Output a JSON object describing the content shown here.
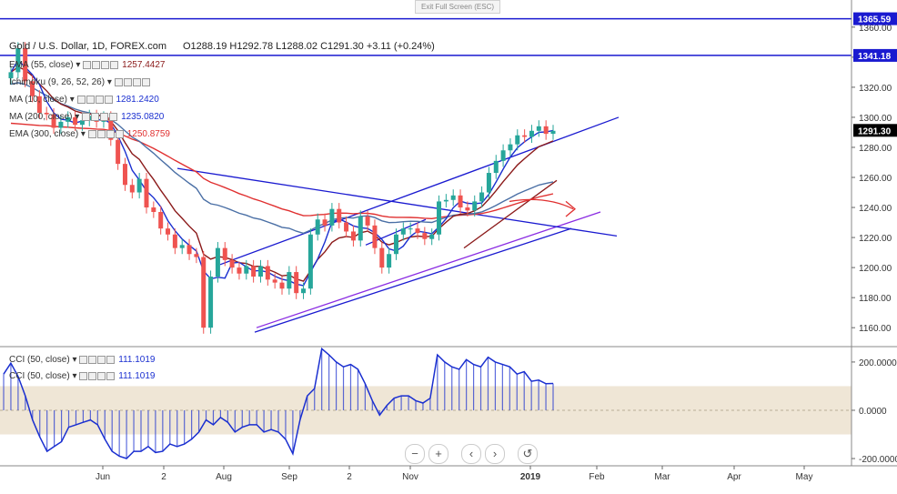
{
  "window": {
    "exit_fullscreen_label": "Exit Full Screen (ESC)"
  },
  "legend": {
    "symbol": "Gold / U.S. Dollar, 1D, FOREX.com",
    "ohlc": "O1288.19  H1292.78  L1288.02  C1291.30  +3.11 (+0.24%)",
    "indicators": [
      {
        "name": "EMA (55, close)",
        "value": "1257.4427",
        "color": "#8b1a1a"
      },
      {
        "name": "Ichimoku (9, 26, 52, 26)",
        "value": "",
        "color": "#1e6fd9"
      },
      {
        "name": "MA (10, close)",
        "value": "1281.2420",
        "color": "#1a2fd0"
      },
      {
        "name": "MA (200, close)",
        "value": "1235.0820",
        "color": "#1a2fd0"
      },
      {
        "name": "EMA (300, close)",
        "value": "1250.8759",
        "color": "#e03030"
      }
    ],
    "sub_indicators": [
      {
        "name": "CCI (50, close)",
        "value": "111.1019",
        "color": "#1a2fd0"
      },
      {
        "name": "CCI (50, close)",
        "value": "111.1019",
        "color": "#1a2fd0"
      }
    ]
  },
  "price_labels": {
    "resistance_1": "1365.59",
    "resistance_2": "1341.18",
    "last_price": "1291.30"
  },
  "colors": {
    "candle_up": "#26a69a",
    "candle_down": "#ef5350",
    "horizontal_line": "#1a1ad0",
    "last_price_badge": "#000000",
    "cci_band": "#ebe0cc",
    "trend_purple": "#8a2be2",
    "arrow_red": "#e03030"
  },
  "zoom_controls": [
    "minus-icon",
    "plus-icon",
    "chevron-left-icon",
    "chevron-right-icon",
    "reset-icon"
  ],
  "chart_data": {
    "type": "line",
    "title": "",
    "xlabel": "",
    "ylabel": "",
    "x_ticks": [
      "Jun",
      "2",
      "Aug",
      "Sep",
      "2",
      "Nov",
      "2019",
      "Feb",
      "Mar",
      "Apr",
      "May"
    ],
    "y_ticks": [
      "1360.00",
      "1340.00",
      "1320.00",
      "1300.00",
      "1280.00",
      "1260.00",
      "1240.00",
      "1220.00",
      "1200.00",
      "1180.00",
      "1160.00"
    ],
    "ylim": [
      1148,
      1372
    ],
    "grid": false,
    "series": [
      {
        "name": "Gold / U.S. Dollar",
        "values": [
          1330,
          1346,
          1324,
          1314,
          1303,
          1302,
          1293,
          1297,
          1300,
          1295,
          1298,
          1301,
          1297,
          1300,
          1285,
          1269,
          1255,
          1250,
          1259,
          1240,
          1237,
          1226,
          1222,
          1213,
          1215,
          1209,
          1207,
          1160,
          1194,
          1213,
          1205,
          1200,
          1196,
          1201,
          1194,
          1201,
          1192,
          1190,
          1186,
          1197,
          1183,
          1186,
          1222,
          1232,
          1228,
          1239,
          1230,
          1224,
          1218,
          1234,
          1228,
          1213,
          1200,
          1209,
          1222,
          1226,
          1226,
          1223,
          1219,
          1222,
          1244,
          1245,
          1248,
          1240,
          1238,
          1244,
          1250,
          1263,
          1271,
          1278,
          1282,
          1288,
          1287,
          1291,
          1294,
          1289,
          1291
        ]
      }
    ],
    "indicator_values": {
      "EMA (55, close)": 1257.4427,
      "MA (10, close)": 1281.242,
      "MA (200, close)": 1235.082,
      "EMA (300, close)": 1250.8759
    },
    "horizontal_levels": [
      1365.59,
      1341.18
    ],
    "last_close": 1291.3,
    "cci": {
      "name": "CCI (50, close)",
      "ylim": [
        -230,
        260
      ],
      "y_ticks": [
        "200.0000",
        "0.0000",
        "-200.0000"
      ],
      "band": [
        -100,
        100
      ],
      "last_value": 111.1019,
      "values": [
        150,
        195,
        140,
        60,
        -40,
        -110,
        -170,
        -150,
        -130,
        -70,
        -60,
        -50,
        -40,
        -60,
        -120,
        -170,
        -190,
        -200,
        -170,
        -170,
        -150,
        -175,
        -170,
        -140,
        -150,
        -140,
        -120,
        -90,
        -40,
        -60,
        -30,
        -50,
        -90,
        -70,
        -60,
        -60,
        -90,
        -80,
        -90,
        -120,
        -180,
        -40,
        60,
        90,
        255,
        230,
        200,
        180,
        190,
        170,
        110,
        40,
        -20,
        20,
        50,
        60,
        60,
        40,
        30,
        50,
        230,
        200,
        180,
        170,
        210,
        190,
        180,
        220,
        200,
        190,
        180,
        150,
        160,
        120,
        125,
        110,
        111
      ]
    }
  }
}
